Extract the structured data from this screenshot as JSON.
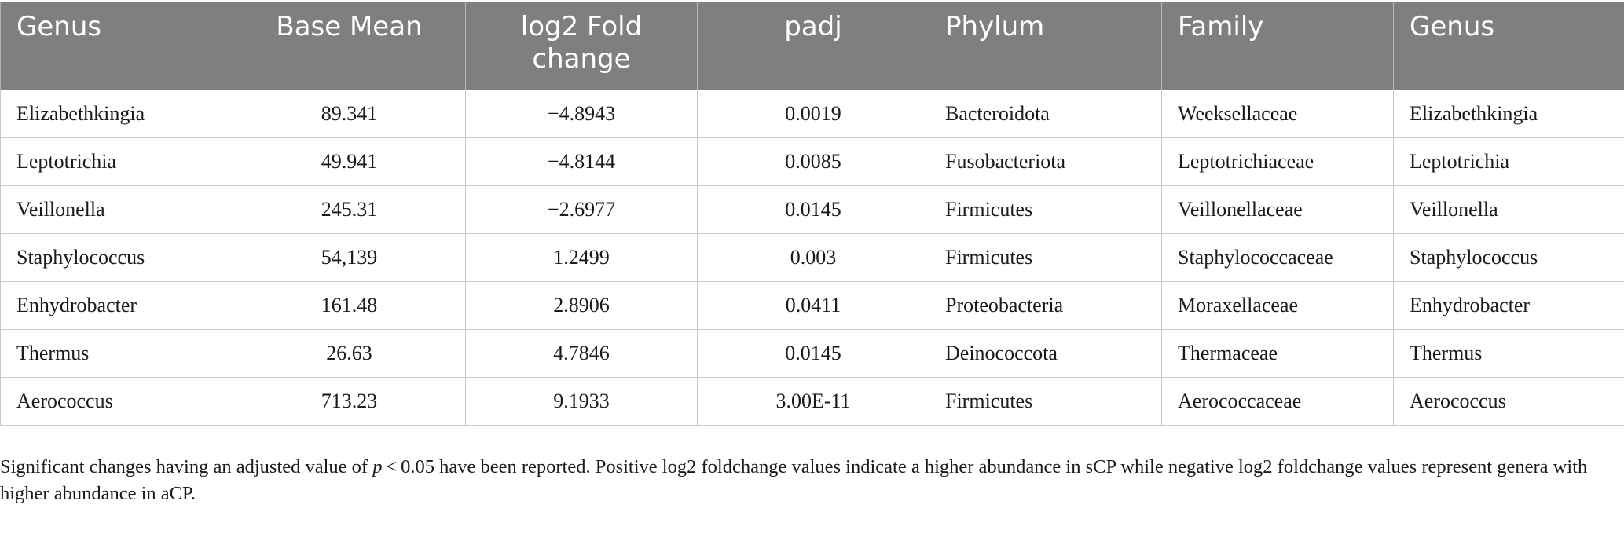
{
  "table": {
    "headers": [
      "Genus",
      "Base Mean",
      "log2 Fold change",
      "padj",
      "Phylum",
      "Family",
      "Genus"
    ],
    "rows": [
      [
        "Elizabethkingia",
        "89.341",
        "−4.8943",
        "0.0019",
        "Bacteroidota",
        "Weeksellaceae",
        "Elizabethkingia"
      ],
      [
        "Leptotrichia",
        "49.941",
        "−4.8144",
        "0.0085",
        "Fusobacteriota",
        "Leptotrichiaceae",
        "Leptotrichia"
      ],
      [
        "Veillonella",
        "245.31",
        "−2.6977",
        "0.0145",
        "Firmicutes",
        "Veillonellaceae",
        "Veillonella"
      ],
      [
        "Staphylococcus",
        "54,139",
        "1.2499",
        "0.003",
        "Firmicutes",
        "Staphylococcaceae",
        "Staphylococcus"
      ],
      [
        "Enhydrobacter",
        "161.48",
        "2.8906",
        "0.0411",
        "Proteobacteria",
        "Moraxellaceae",
        "Enhydrobacter"
      ],
      [
        "Thermus",
        "26.63",
        "4.7846",
        "0.0145",
        "Deinococcota",
        "Thermaceae",
        "Thermus"
      ],
      [
        "Aerococcus",
        "713.23",
        "9.1933",
        "3.00E-11",
        "Firmicutes",
        "Aerococcaceae",
        "Aerococcus"
      ]
    ]
  },
  "footnote": {
    "before": "Significant changes having an adjusted value of ",
    "italic": "p",
    "after": " < 0.05 have been reported. Positive log2 foldchange values indicate a higher abundance in sCP while negative log2 foldchange values represent genera with higher abundance in aCP."
  }
}
